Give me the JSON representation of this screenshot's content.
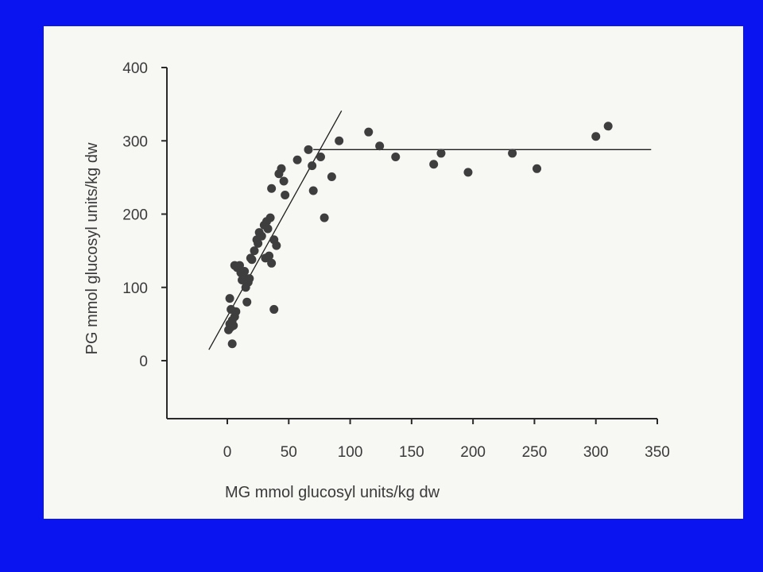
{
  "chart_data": {
    "type": "scatter",
    "title": "",
    "xlabel": "MG mmol glucosyl units/kg dw",
    "ylabel": "PG mmol glucosyl units/kg dw",
    "xlim": [
      -50,
      350
    ],
    "ylim": [
      -75,
      400
    ],
    "xticks": [
      0,
      50,
      100,
      150,
      200,
      250,
      300,
      350
    ],
    "yticks": [
      0,
      100,
      200,
      300,
      400
    ],
    "grid": false,
    "legend": "none",
    "colors": {
      "point": "#3e3e3e",
      "line": "#1e1e1e",
      "axis": "#2a2a2a"
    },
    "points": [
      [
        1,
        42
      ],
      [
        2,
        50
      ],
      [
        3,
        46
      ],
      [
        4,
        55
      ],
      [
        5,
        48
      ],
      [
        6,
        60
      ],
      [
        7,
        67
      ],
      [
        3,
        70
      ],
      [
        4,
        23
      ],
      [
        2,
        85
      ],
      [
        6,
        130
      ],
      [
        8,
        127
      ],
      [
        10,
        130
      ],
      [
        11,
        120
      ],
      [
        12,
        110
      ],
      [
        13,
        118
      ],
      [
        15,
        100
      ],
      [
        17,
        107
      ],
      [
        18,
        112
      ],
      [
        16,
        80
      ],
      [
        14,
        122
      ],
      [
        19,
        140
      ],
      [
        20,
        138
      ],
      [
        22,
        150
      ],
      [
        24,
        165
      ],
      [
        25,
        160
      ],
      [
        26,
        175
      ],
      [
        28,
        170
      ],
      [
        30,
        185
      ],
      [
        32,
        190
      ],
      [
        33,
        180
      ],
      [
        35,
        195
      ],
      [
        31,
        140
      ],
      [
        34,
        143
      ],
      [
        36,
        133
      ],
      [
        38,
        165
      ],
      [
        40,
        157
      ],
      [
        36,
        235
      ],
      [
        38,
        70
      ],
      [
        42,
        255
      ],
      [
        44,
        262
      ],
      [
        46,
        245
      ],
      [
        47,
        226
      ],
      [
        57,
        274
      ],
      [
        66,
        288
      ],
      [
        69,
        266
      ],
      [
        70,
        232
      ],
      [
        76,
        278
      ],
      [
        79,
        195
      ],
      [
        85,
        251
      ],
      [
        91,
        300
      ],
      [
        115,
        312
      ],
      [
        124,
        293
      ],
      [
        137,
        278
      ],
      [
        168,
        268
      ],
      [
        174,
        283
      ],
      [
        196,
        257
      ],
      [
        232,
        283
      ],
      [
        252,
        262
      ],
      [
        300,
        306
      ],
      [
        310,
        320
      ]
    ],
    "fit_lines": [
      {
        "x": [
          -15,
          93
        ],
        "y": [
          15,
          341
        ]
      },
      {
        "x": [
          70,
          345
        ],
        "y": [
          288,
          288
        ]
      }
    ]
  }
}
